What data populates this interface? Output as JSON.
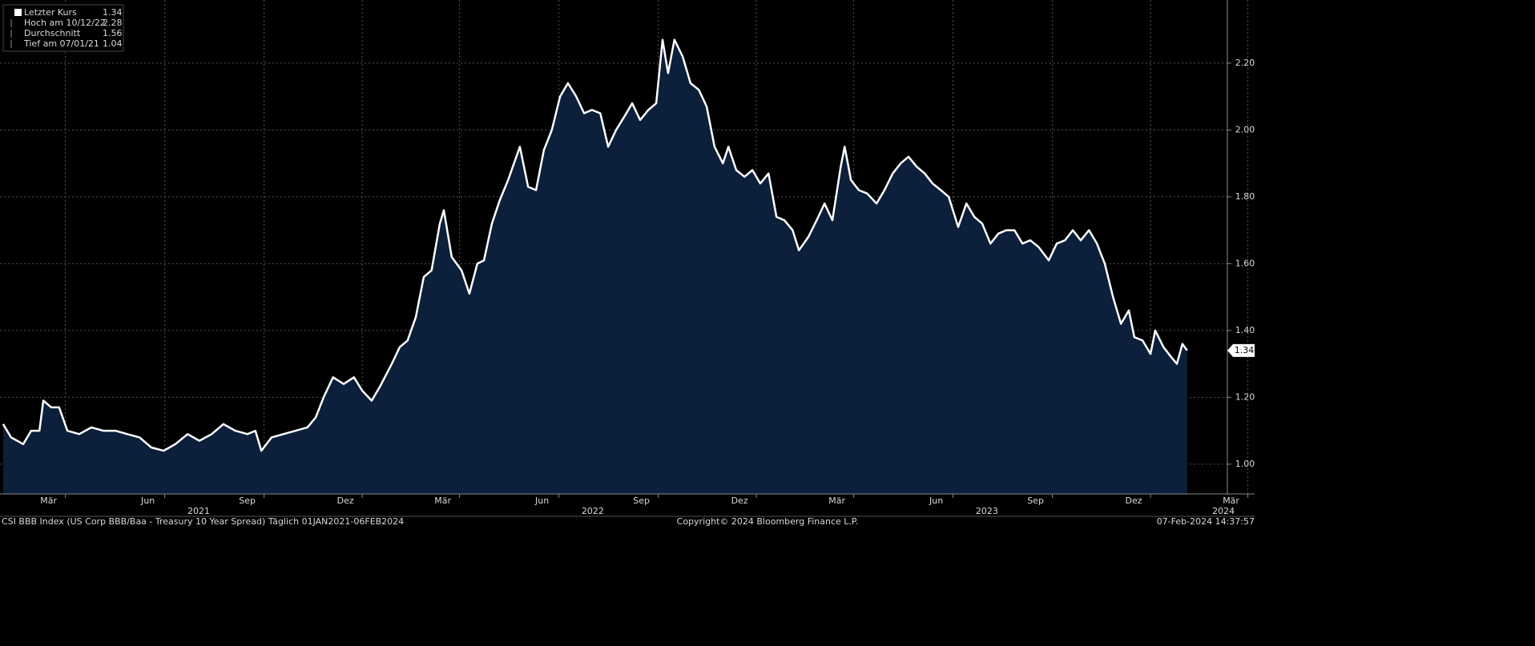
{
  "chart_data": {
    "type": "area",
    "legend": [
      {
        "label": "Letzter Kurs",
        "value": 1.34
      },
      {
        "label": "Hoch am 10/12/22",
        "value": 2.28
      },
      {
        "label": "Durchschnitt",
        "value": 1.56
      },
      {
        "label": "Tief am 07/01/21",
        "value": 1.04
      }
    ],
    "footer_left": "CSI BBB Index (US Corp BBB/Baa - Treasury 10 Year Spread)  Täglich 01JAN2021-06FEB2024",
    "footer_center": "Copyright© 2024 Bloomberg Finance L.P.",
    "footer_right": "07-Feb-2024 14:37:57",
    "line_color": "#ffffff",
    "fill_color": "#0c1f3b",
    "grid": true,
    "xlim": [
      2020.996,
      2024.11
    ],
    "ylim": [
      0.911,
      2.389
    ],
    "yticks": [
      {
        "value": 1.0,
        "label": "1.00"
      },
      {
        "value": 1.2,
        "label": "1.20"
      },
      {
        "value": 1.4,
        "label": "1.40"
      },
      {
        "value": 1.6,
        "label": "1.60"
      },
      {
        "value": 1.8,
        "label": "1.80"
      },
      {
        "value": 2.0,
        "label": "2.00"
      },
      {
        "value": 2.2,
        "label": "2.20"
      }
    ],
    "xticks": [
      {
        "value": 2021.162,
        "label": "Mär"
      },
      {
        "value": 2021.414,
        "label": "Jun"
      },
      {
        "value": 2021.666,
        "label": "Sep"
      },
      {
        "value": 2021.915,
        "label": "Dez"
      },
      {
        "value": 2022.162,
        "label": "Mär"
      },
      {
        "value": 2022.414,
        "label": "Jun"
      },
      {
        "value": 2022.666,
        "label": "Sep"
      },
      {
        "value": 2022.915,
        "label": "Dez"
      },
      {
        "value": 2023.162,
        "label": "Mär"
      },
      {
        "value": 2023.414,
        "label": "Jun"
      },
      {
        "value": 2023.666,
        "label": "Sep"
      },
      {
        "value": 2023.915,
        "label": "Dez"
      },
      {
        "value": 2024.162,
        "label": "Mär"
      }
    ],
    "year_labels": [
      {
        "value": 2021.5,
        "label": "2021"
      },
      {
        "value": 2022.5,
        "label": "2022"
      },
      {
        "value": 2023.5,
        "label": "2023"
      },
      {
        "value": 2024.1,
        "label": "2024"
      }
    ],
    "x": [
      2021.004,
      2021.024,
      2021.055,
      2021.075,
      2021.096,
      2021.106,
      2021.126,
      2021.146,
      2021.167,
      2021.197,
      2021.228,
      2021.258,
      2021.289,
      2021.319,
      2021.35,
      2021.38,
      2021.411,
      2021.441,
      2021.472,
      2021.502,
      2021.533,
      2021.563,
      2021.593,
      2021.624,
      2021.644,
      2021.659,
      2021.685,
      2021.715,
      2021.746,
      2021.776,
      2021.797,
      2021.817,
      2021.841,
      2021.868,
      2021.894,
      2021.915,
      2021.939,
      2021.959,
      2021.99,
      2022.01,
      2022.03,
      2022.051,
      2022.071,
      2022.091,
      2022.112,
      2022.122,
      2022.142,
      2022.167,
      2022.187,
      2022.207,
      2022.224,
      2022.244,
      2022.264,
      2022.285,
      2022.315,
      2022.336,
      2022.356,
      2022.376,
      2022.396,
      2022.417,
      2022.437,
      2022.458,
      2022.478,
      2022.498,
      2022.519,
      2022.539,
      2022.559,
      2022.58,
      2022.6,
      2022.62,
      2022.641,
      2022.661,
      2022.677,
      2022.691,
      2022.707,
      2022.728,
      2022.748,
      2022.769,
      2022.789,
      2022.809,
      2022.83,
      2022.844,
      2022.864,
      2022.885,
      2022.905,
      2022.925,
      2022.946,
      2022.966,
      2022.986,
      2023.007,
      2023.023,
      2023.047,
      2023.068,
      2023.088,
      2023.108,
      2023.129,
      2023.139,
      2023.155,
      2023.175,
      2023.196,
      2023.22,
      2023.24,
      2023.261,
      2023.281,
      2023.301,
      2023.322,
      2023.342,
      2023.362,
      2023.383,
      2023.403,
      2023.427,
      2023.448,
      2023.468,
      2023.488,
      2023.509,
      2023.529,
      2023.549,
      2023.57,
      2023.59,
      2023.61,
      2023.631,
      2023.657,
      2023.677,
      2023.698,
      2023.718,
      2023.738,
      2023.759,
      2023.779,
      2023.799,
      2023.82,
      2023.84,
      2023.86,
      2023.874,
      2023.895,
      2023.915,
      2023.927,
      2023.948,
      2023.968,
      2023.982,
      2023.996,
      2024.008
    ],
    "series": [
      {
        "name": "Letzter Kurs",
        "values": [
          1.12,
          1.08,
          1.06,
          1.1,
          1.1,
          1.19,
          1.17,
          1.17,
          1.1,
          1.09,
          1.11,
          1.1,
          1.1,
          1.09,
          1.08,
          1.05,
          1.04,
          1.06,
          1.09,
          1.07,
          1.09,
          1.12,
          1.1,
          1.09,
          1.1,
          1.04,
          1.08,
          1.09,
          1.1,
          1.11,
          1.14,
          1.2,
          1.26,
          1.24,
          1.26,
          1.22,
          1.19,
          1.23,
          1.3,
          1.35,
          1.37,
          1.44,
          1.56,
          1.58,
          1.72,
          1.76,
          1.62,
          1.58,
          1.51,
          1.6,
          1.61,
          1.72,
          1.79,
          1.85,
          1.95,
          1.83,
          1.82,
          1.94,
          2.0,
          2.1,
          2.14,
          2.1,
          2.05,
          2.06,
          2.05,
          1.95,
          2.0,
          2.04,
          2.08,
          2.03,
          2.06,
          2.08,
          2.27,
          2.17,
          2.27,
          2.22,
          2.14,
          2.12,
          2.07,
          1.95,
          1.9,
          1.95,
          1.88,
          1.86,
          1.88,
          1.84,
          1.87,
          1.74,
          1.73,
          1.7,
          1.64,
          1.68,
          1.73,
          1.78,
          1.73,
          1.89,
          1.95,
          1.85,
          1.82,
          1.81,
          1.78,
          1.82,
          1.87,
          1.9,
          1.92,
          1.89,
          1.87,
          1.84,
          1.82,
          1.8,
          1.71,
          1.78,
          1.74,
          1.72,
          1.66,
          1.69,
          1.7,
          1.7,
          1.66,
          1.67,
          1.65,
          1.61,
          1.66,
          1.67,
          1.7,
          1.67,
          1.7,
          1.66,
          1.6,
          1.5,
          1.42,
          1.46,
          1.38,
          1.37,
          1.33,
          1.4,
          1.35,
          1.32,
          1.3,
          1.36,
          1.34
        ]
      }
    ]
  }
}
